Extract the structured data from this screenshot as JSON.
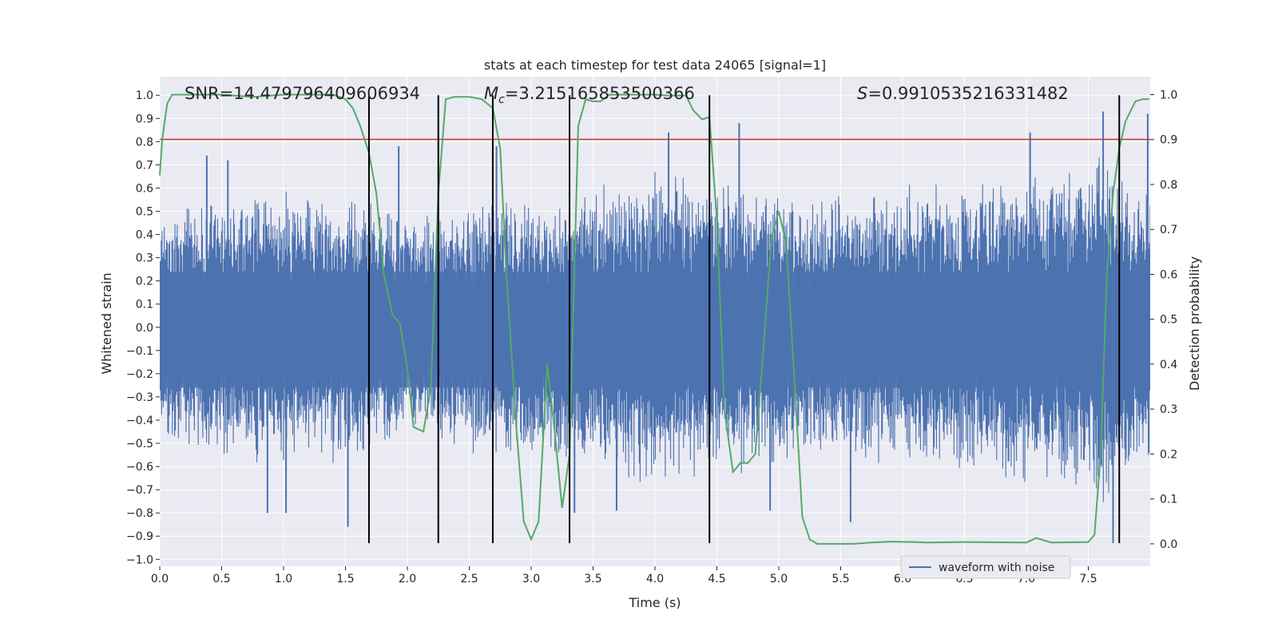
{
  "chart_data": {
    "type": "line",
    "title": "stats at each timestep for test data 24065 [signal=1]",
    "xlabel": "Time (s)",
    "ylabel_left": "Whitened strain",
    "ylabel_right": "Detection probability",
    "xlim": [
      0.0,
      8.0
    ],
    "ylim_left": [
      -1.03,
      1.08
    ],
    "ylim_right": [
      -0.05,
      1.04
    ],
    "x_ticks": [
      0.0,
      0.5,
      1.0,
      1.5,
      2.0,
      2.5,
      3.0,
      3.5,
      4.0,
      4.5,
      5.0,
      5.5,
      6.0,
      6.5,
      7.0,
      7.5
    ],
    "x_tick_labels": [
      "0.0",
      "0.5",
      "1.0",
      "1.5",
      "2.0",
      "2.5",
      "3.0",
      "3.5",
      "4.0",
      "4.5",
      "5.0",
      "5.5",
      "6.0",
      "6.5",
      "7.0",
      "7.5"
    ],
    "y_left_ticks": [
      1.0,
      0.9,
      0.8,
      0.7,
      0.6,
      0.5,
      0.4,
      0.3,
      0.2,
      0.1,
      0.0,
      -0.1,
      -0.2,
      -0.3,
      -0.4,
      -0.5,
      -0.6,
      -0.7,
      -0.8,
      -0.9,
      -1.0
    ],
    "y_left_tick_labels": [
      "1.0",
      "0.9",
      "0.8",
      "0.7",
      "0.6",
      "0.5",
      "0.4",
      "0.3",
      "0.2",
      "0.1",
      "0.0",
      "−0.1",
      "−0.2",
      "−0.3",
      "−0.4",
      "−0.5",
      "−0.6",
      "−0.7",
      "−0.8",
      "−0.9",
      "−1.0"
    ],
    "y_right_ticks": [
      1.0,
      0.9,
      0.8,
      0.7,
      0.6,
      0.5,
      0.4,
      0.3,
      0.2,
      0.1,
      0.0
    ],
    "y_right_tick_labels": [
      "1.0",
      "0.9",
      "0.8",
      "0.7",
      "0.6",
      "0.5",
      "0.4",
      "0.3",
      "0.2",
      "0.1",
      "0.0"
    ],
    "annotations": {
      "snr": "SNR=14.479796409606934",
      "mc_symbol": "M",
      "mc_sub": "c",
      "mc_value": "=3.215165853500366",
      "s_symbol": "S",
      "s_value": "=0.9910535216331482"
    },
    "threshold_line": {
      "axis": "left",
      "y": 0.81,
      "color": "#c0392b"
    },
    "vertical_lines": {
      "x": [
        1.69,
        2.25,
        2.69,
        3.31,
        4.44,
        7.75
      ],
      "y_range": [
        -0.93,
        1.0
      ],
      "color": "#000000"
    },
    "series": [
      {
        "name": "waveform with noise",
        "color": "#4c72b0",
        "axis": "left",
        "envelope": {
          "x": [
            0.0,
            0.5,
            1.0,
            1.5,
            1.69,
            2.0,
            2.25,
            2.69,
            3.0,
            3.31,
            3.6,
            4.0,
            4.44,
            4.6,
            5.0,
            5.5,
            6.0,
            6.5,
            7.0,
            7.5,
            7.6,
            7.75,
            8.0
          ],
          "peak": [
            0.55,
            0.58,
            0.6,
            0.6,
            0.55,
            0.52,
            0.5,
            0.6,
            0.55,
            0.6,
            0.65,
            0.7,
            0.68,
            0.65,
            0.6,
            0.58,
            0.62,
            0.65,
            0.7,
            0.72,
            0.85,
            0.65,
            0.6
          ]
        },
        "spikes": [
          {
            "x": 0.38,
            "y": 0.74
          },
          {
            "x": 0.55,
            "y": 0.72
          },
          {
            "x": 1.93,
            "y": 0.78
          },
          {
            "x": 2.72,
            "y": 0.78
          },
          {
            "x": 4.11,
            "y": 0.84
          },
          {
            "x": 4.68,
            "y": 0.88
          },
          {
            "x": 7.03,
            "y": 0.84
          },
          {
            "x": 7.62,
            "y": 0.93
          },
          {
            "x": 7.98,
            "y": 0.92
          },
          {
            "x": 1.52,
            "y": -0.86
          },
          {
            "x": 0.87,
            "y": -0.8
          },
          {
            "x": 1.02,
            "y": -0.8
          },
          {
            "x": 3.35,
            "y": -0.8
          },
          {
            "x": 3.69,
            "y": -0.79
          },
          {
            "x": 4.93,
            "y": -0.79
          },
          {
            "x": 5.58,
            "y": -0.84
          },
          {
            "x": 7.7,
            "y": -0.93
          }
        ]
      },
      {
        "name": "detection probability",
        "color": "#55a868",
        "axis": "right",
        "x": [
          0.0,
          0.02,
          0.06,
          0.1,
          0.2,
          0.5,
          0.75,
          1.0,
          1.4,
          1.5,
          1.56,
          1.62,
          1.69,
          1.75,
          1.81,
          1.88,
          1.94,
          2.0,
          2.05,
          2.13,
          2.19,
          2.25,
          2.31,
          2.38,
          2.5,
          2.6,
          2.69,
          2.75,
          2.8,
          2.88,
          2.94,
          3.0,
          3.06,
          3.13,
          3.19,
          3.25,
          3.31,
          3.38,
          3.44,
          3.5,
          3.56,
          3.63,
          3.69,
          4.0,
          4.1,
          4.25,
          4.31,
          4.38,
          4.44,
          4.5,
          4.56,
          4.63,
          4.69,
          4.75,
          4.81,
          4.88,
          4.94,
          5.0,
          5.06,
          5.13,
          5.19,
          5.25,
          5.31,
          5.4,
          5.6,
          5.75,
          5.9,
          6.1,
          6.2,
          6.5,
          7.0,
          7.08,
          7.2,
          7.5,
          7.55,
          7.6,
          7.65,
          7.7,
          7.75,
          7.8,
          7.88,
          7.94,
          7.99
        ],
        "y": [
          0.82,
          0.9,
          0.98,
          1.0,
          1.0,
          1.0,
          0.995,
          1.0,
          1.0,
          0.99,
          0.97,
          0.93,
          0.87,
          0.78,
          0.6,
          0.51,
          0.49,
          0.39,
          0.26,
          0.25,
          0.35,
          0.78,
          0.99,
          0.995,
          0.995,
          0.99,
          0.97,
          0.88,
          0.6,
          0.26,
          0.05,
          0.01,
          0.05,
          0.4,
          0.25,
          0.08,
          0.2,
          0.93,
          0.99,
          0.985,
          0.985,
          1.0,
          1.0,
          1.0,
          0.998,
          0.998,
          0.965,
          0.945,
          0.95,
          0.72,
          0.3,
          0.16,
          0.18,
          0.18,
          0.2,
          0.45,
          0.68,
          0.74,
          0.67,
          0.35,
          0.06,
          0.01,
          0.0,
          0.0,
          0.0,
          0.003,
          0.005,
          0.004,
          0.003,
          0.004,
          0.003,
          0.013,
          0.003,
          0.004,
          0.02,
          0.2,
          0.6,
          0.78,
          0.88,
          0.94,
          0.985,
          0.99,
          0.99
        ]
      }
    ],
    "legend": {
      "placement": "lower-right",
      "entries": [
        "waveform with noise"
      ]
    }
  }
}
